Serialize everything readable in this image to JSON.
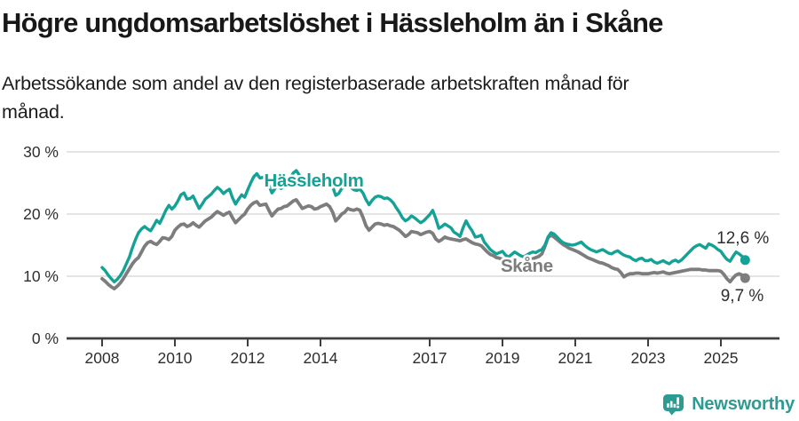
{
  "header": {
    "title": "Högre ungdomsarbetslöshet i Hässleholm än i Skåne",
    "subtitle_lines": [
      "Arbetssökande som andel av den registerbaserade arbetskraften månad för",
      "månad."
    ]
  },
  "footer": {
    "brand": "Newsworthy",
    "logo_icon": "bar-chart-bubble-icon"
  },
  "colors": {
    "hassleholm": "#15a296",
    "skane": "#7d7d7d",
    "grid": "#dcdcdc",
    "axis": "#3f3f3f",
    "tick_text": "#2e2e2e",
    "brand": "#2e9b93"
  },
  "chart_data": {
    "type": "line",
    "title": "Högre ungdomsarbetslöshet i Hässleholm än i Skåne",
    "xlabel": "",
    "ylabel": "",
    "grid": "horizontal",
    "legend_position": "inline-labels",
    "ylim": [
      0,
      32
    ],
    "x_start_year": 2008,
    "points_per_year": 12,
    "x_tick_years": [
      2008,
      2010,
      2012,
      2014,
      2017,
      2019,
      2021,
      2023,
      2025
    ],
    "y_ticks": [
      {
        "value": 0,
        "label": "0 %"
      },
      {
        "value": 10,
        "label": "10 %"
      },
      {
        "value": 20,
        "label": "20 %"
      },
      {
        "value": 30,
        "label": "30 %"
      }
    ],
    "series": [
      {
        "name": "Hässleholm",
        "color": "#15a296",
        "end_label": "12,6 %",
        "inline_label": {
          "x": 2012.45,
          "y": 24.4
        },
        "values": [
          11.4,
          10.9,
          10.2,
          9.6,
          9.1,
          9.5,
          10.1,
          10.9,
          12.0,
          13.1,
          14.6,
          15.9,
          17.0,
          17.6,
          18.0,
          17.6,
          17.3,
          18.1,
          19.0,
          18.5,
          19.5,
          20.6,
          21.4,
          20.8,
          21.3,
          22.1,
          23.1,
          23.4,
          22.4,
          22.5,
          22.9,
          21.9,
          20.9,
          21.6,
          22.4,
          22.8,
          23.2,
          23.8,
          24.3,
          23.9,
          23.3,
          23.7,
          24.0,
          22.6,
          21.6,
          22.4,
          23.1,
          22.7,
          23.9,
          25.0,
          26.0,
          26.5,
          25.8,
          25.9,
          26.1,
          24.6,
          23.4,
          24.1,
          24.6,
          24.1,
          24.7,
          24.9,
          25.6,
          26.6,
          27.0,
          26.3,
          25.5,
          25.6,
          25.9,
          25.7,
          24.8,
          24.6,
          24.9,
          25.1,
          25.3,
          25.0,
          24.4,
          23.0,
          23.3,
          24.1,
          24.4,
          24.6,
          24.3,
          23.9,
          23.8,
          24.0,
          23.4,
          22.3,
          21.5,
          22.2,
          22.7,
          22.9,
          22.8,
          22.5,
          22.6,
          22.3,
          21.8,
          21.0,
          20.3,
          19.4,
          18.9,
          19.2,
          19.7,
          19.4,
          19.0,
          18.6,
          18.9,
          19.4,
          19.9,
          20.6,
          19.3,
          17.7,
          18.0,
          18.4,
          18.1,
          17.8,
          17.1,
          16.8,
          16.4,
          17.8,
          18.9,
          18.0,
          17.3,
          16.3,
          16.4,
          16.6,
          15.5,
          14.9,
          14.3,
          13.9,
          13.6,
          13.8,
          14.0,
          13.4,
          13.1,
          13.5,
          13.9,
          13.6,
          13.3,
          13.1,
          13.4,
          13.7,
          13.9,
          13.8,
          14.1,
          14.3,
          15.0,
          16.3,
          17.0,
          16.8,
          16.3,
          15.8,
          15.4,
          15.2,
          15.1,
          15.0,
          15.1,
          15.3,
          15.5,
          15.0,
          14.6,
          14.3,
          14.1,
          13.9,
          14.1,
          14.3,
          14.0,
          13.7,
          13.6,
          13.9,
          14.1,
          13.7,
          13.4,
          13.2,
          13.1,
          12.7,
          12.5,
          12.8,
          12.9,
          12.5,
          12.5,
          12.7,
          12.3,
          12.1,
          12.3,
          12.5,
          12.2,
          12.0,
          12.4,
          12.6,
          12.3,
          12.6,
          13.1,
          13.6,
          14.1,
          14.6,
          14.9,
          15.1,
          14.8,
          14.5,
          15.2,
          15.0,
          14.7,
          14.3,
          14.0,
          13.3,
          12.7,
          12.4,
          13.2,
          13.9,
          13.6,
          13.2,
          12.6
        ]
      },
      {
        "name": "Skåne",
        "color": "#7d7d7d",
        "end_label": "9,7 %",
        "inline_label": {
          "x": 2018.95,
          "y": 10.7
        },
        "values": [
          9.6,
          9.2,
          8.7,
          8.3,
          8.0,
          8.4,
          8.9,
          9.6,
          10.4,
          11.2,
          12.0,
          12.6,
          13.0,
          13.9,
          14.8,
          15.4,
          15.6,
          15.3,
          15.1,
          15.6,
          16.2,
          16.1,
          15.9,
          16.4,
          17.4,
          17.9,
          18.3,
          18.4,
          18.0,
          18.2,
          18.6,
          18.2,
          17.9,
          18.4,
          18.9,
          19.2,
          19.5,
          20.0,
          20.4,
          20.1,
          19.8,
          20.1,
          20.3,
          19.4,
          18.6,
          19.1,
          19.6,
          20.0,
          20.8,
          21.4,
          21.8,
          22.0,
          21.4,
          21.5,
          21.6,
          20.6,
          19.7,
          20.3,
          20.8,
          20.9,
          21.2,
          21.3,
          21.7,
          22.1,
          22.3,
          21.6,
          20.9,
          21.1,
          21.3,
          21.2,
          20.8,
          20.9,
          21.2,
          21.4,
          21.6,
          21.2,
          20.3,
          18.9,
          19.4,
          20.0,
          20.3,
          20.9,
          20.7,
          20.6,
          20.8,
          20.6,
          19.5,
          18.1,
          17.4,
          17.9,
          18.4,
          18.5,
          18.4,
          18.2,
          18.3,
          18.1,
          18.0,
          17.7,
          17.4,
          16.9,
          16.4,
          16.7,
          17.2,
          17.1,
          17.0,
          16.7,
          16.9,
          17.1,
          17.2,
          16.9,
          16.0,
          15.6,
          15.9,
          16.3,
          16.1,
          16.0,
          15.9,
          15.8,
          15.7,
          15.9,
          16.0,
          15.7,
          15.4,
          15.2,
          15.1,
          14.9,
          14.4,
          13.9,
          13.5,
          13.3,
          13.0,
          12.9,
          12.7,
          12.4,
          12.2,
          12.4,
          12.6,
          12.4,
          12.3,
          12.2,
          12.4,
          12.6,
          12.8,
          13.0,
          13.2,
          13.6,
          14.8,
          16.2,
          16.6,
          16.3,
          15.9,
          15.5,
          15.1,
          14.8,
          14.5,
          14.3,
          14.1,
          13.9,
          13.6,
          13.3,
          13.0,
          12.8,
          12.6,
          12.4,
          12.2,
          12.1,
          11.9,
          11.7,
          11.4,
          11.2,
          11.1,
          10.6,
          9.9,
          10.2,
          10.4,
          10.4,
          10.5,
          10.5,
          10.4,
          10.4,
          10.4,
          10.5,
          10.6,
          10.5,
          10.6,
          10.7,
          10.5,
          10.4,
          10.5,
          10.6,
          10.7,
          10.8,
          10.9,
          11.0,
          11.1,
          11.1,
          11.1,
          11.1,
          11.0,
          11.0,
          10.9,
          10.9,
          10.9,
          10.9,
          10.8,
          10.3,
          9.6,
          9.1,
          9.7,
          10.2,
          10.4,
          10.2,
          9.7
        ]
      }
    ]
  }
}
